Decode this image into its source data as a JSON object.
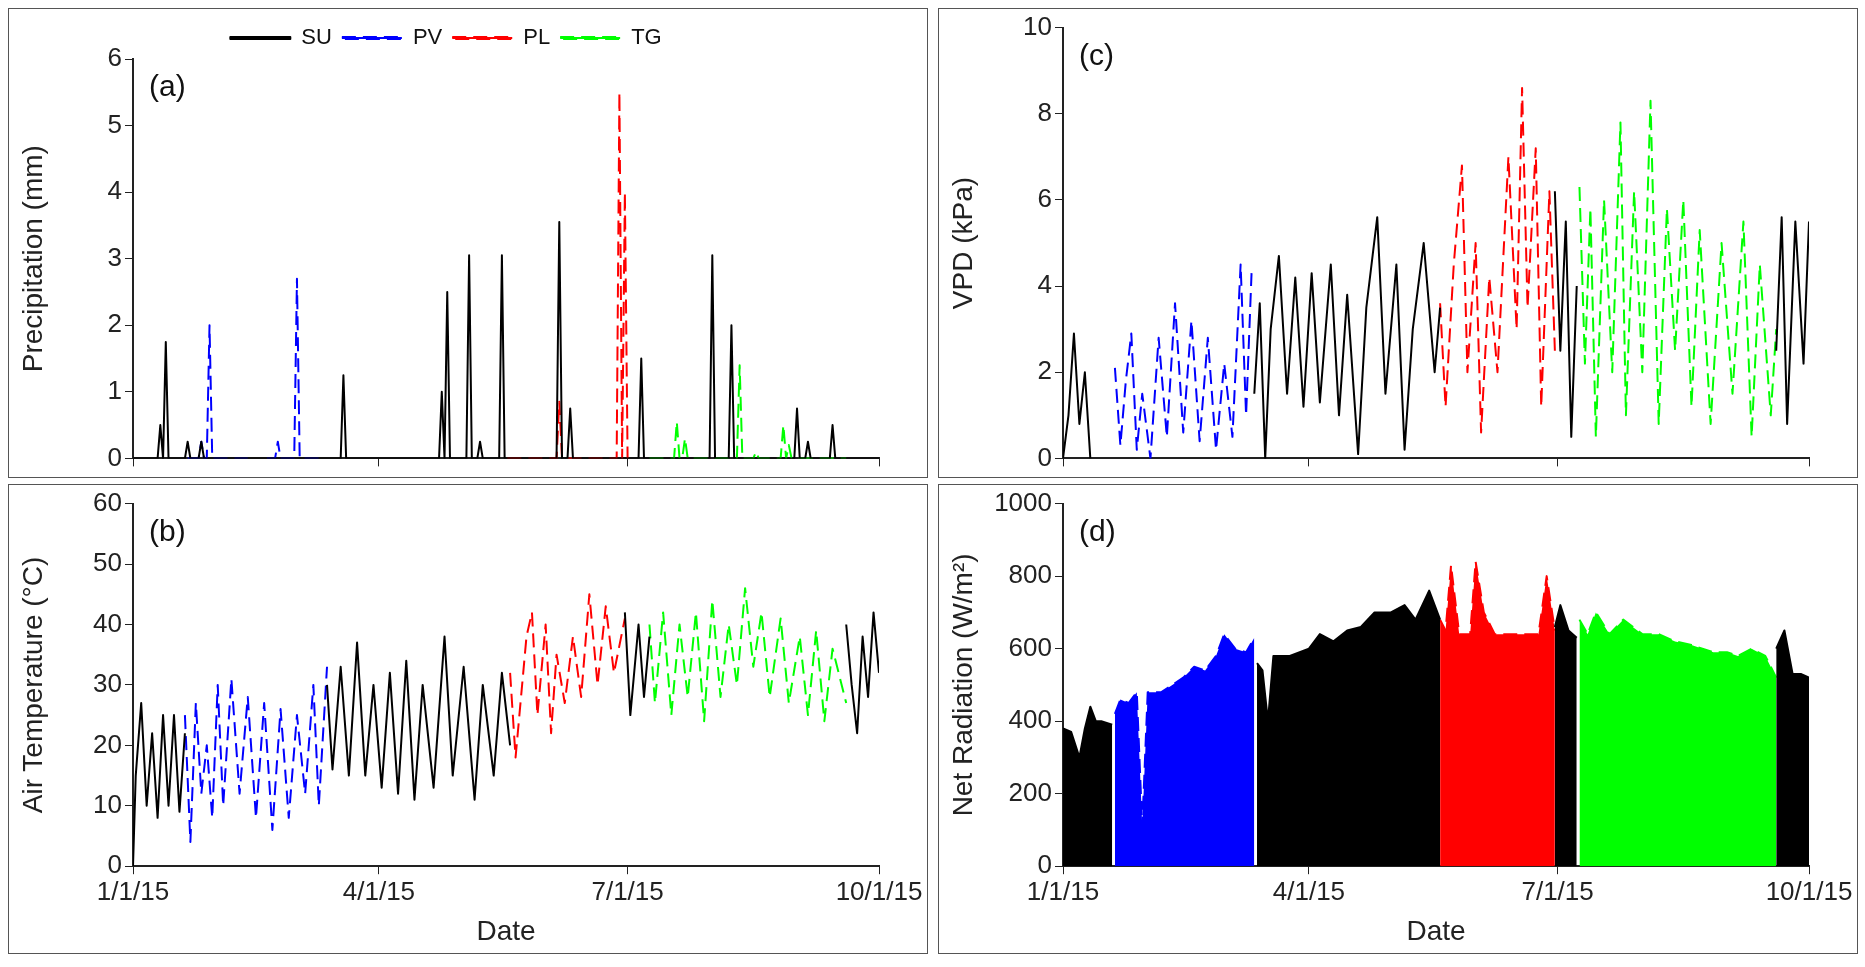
{
  "chart_data": [
    {
      "type": "line",
      "ylabel": "Precipitation (mm)",
      "annotations": [
        "(a)"
      ],
      "legend": "top",
      "tick_labels": "y",
      "grid": false,
      "xlim": [
        "2015-01-01",
        "2015-10-01"
      ],
      "xticks": [
        {
          "value": "2015-01-01",
          "label": null
        },
        {
          "value": "2015-04-01",
          "label": null
        },
        {
          "value": "2015-07-01",
          "label": null
        },
        {
          "value": "2015-10-01",
          "label": null
        }
      ],
      "ylim": [
        0,
        6
      ],
      "yticks": [
        0,
        1,
        2,
        3,
        4,
        5,
        6
      ],
      "series": [
        {
          "name": "SU",
          "color": "#000000",
          "line_style": "solid",
          "x": [
            "2015-01-01",
            "2015-01-10",
            "2015-01-11",
            "2015-01-12",
            "2015-01-13",
            "2015-01-14",
            "2015-01-20",
            "2015-01-21",
            "2015-01-22",
            "2015-01-25",
            "2015-01-26",
            "2015-01-27",
            "2015-03-18",
            "2015-03-19",
            "2015-03-20",
            "2015-04-23",
            "2015-04-24",
            "2015-04-25",
            "2015-04-26",
            "2015-04-27",
            "2015-05-03",
            "2015-05-04",
            "2015-05-05",
            "2015-05-07",
            "2015-05-08",
            "2015-05-09",
            "2015-05-15",
            "2015-05-16",
            "2015-05-17",
            "2015-06-05",
            "2015-06-06",
            "2015-06-07",
            "2015-06-09",
            "2015-06-10",
            "2015-06-11",
            "2015-07-05",
            "2015-07-06",
            "2015-07-07",
            "2015-07-31",
            "2015-08-01",
            "2015-08-02",
            "2015-08-07",
            "2015-08-08",
            "2015-08-09",
            "2015-08-31",
            "2015-09-01",
            "2015-09-02",
            "2015-09-04",
            "2015-09-05",
            "2015-09-06",
            "2015-09-13",
            "2015-09-14",
            "2015-09-15",
            "2015-10-01"
          ],
          "values": [
            0,
            0,
            0.5,
            0,
            1.75,
            0,
            0,
            0.25,
            0,
            0,
            0.25,
            0,
            0,
            1.25,
            0,
            0,
            1.0,
            0,
            2.5,
            0,
            0,
            3.05,
            0,
            0,
            0.25,
            0,
            0,
            3.05,
            0,
            0,
            3.55,
            0,
            0,
            0.75,
            0,
            0,
            1.5,
            0,
            0,
            3.05,
            0,
            0,
            2.0,
            0,
            0,
            0.75,
            0,
            0,
            0.25,
            0,
            0,
            0.5,
            0,
            0
          ]
        },
        {
          "name": "PV",
          "color": "#0000ff",
          "line_style": "dashed",
          "x": [
            "2015-01-21",
            "2015-01-25",
            "2015-01-26",
            "2015-01-27",
            "2015-01-28",
            "2015-01-29",
            "2015-01-30",
            "2015-02-12",
            "2015-02-15",
            "2015-02-19",
            "2015-02-22",
            "2015-02-23",
            "2015-02-24",
            "2015-03-01",
            "2015-03-02",
            "2015-03-03",
            "2015-03-10"
          ],
          "values": [
            0,
            0,
            0.25,
            0,
            0,
            2.0,
            0,
            0,
            null,
            0,
            0,
            0.25,
            0,
            0,
            2.7,
            0,
            0
          ]
        },
        {
          "name": "PL",
          "color": "#ff0000",
          "line_style": "dashed",
          "x": [
            "2015-05-18",
            "2015-06-05",
            "2015-06-06",
            "2015-06-07",
            "2015-06-27",
            "2015-06-28",
            "2015-06-29",
            "2015-06-30",
            "2015-07-01"
          ],
          "values": [
            0,
            0,
            0.85,
            0,
            0,
            5.5,
            0,
            4.0,
            0
          ]
        },
        {
          "name": "TG",
          "color": "#00ff00",
          "line_style": "dashed",
          "x": [
            "2015-07-09",
            "2015-07-18",
            "2015-07-19",
            "2015-07-20",
            "2015-07-21",
            "2015-07-22",
            "2015-07-23",
            "2015-08-10",
            "2015-08-11",
            "2015-08-12",
            "2015-08-16",
            "2015-08-17",
            "2015-08-18",
            "2015-08-26",
            "2015-08-27",
            "2015-08-28",
            "2015-08-29",
            "2015-08-30",
            "2015-09-19"
          ],
          "values": [
            0,
            0,
            0.55,
            0,
            0,
            0.3,
            0,
            0,
            1.4,
            0,
            0,
            0.1,
            0,
            0,
            0.5,
            0,
            0.2,
            0,
            0
          ]
        }
      ]
    },
    {
      "type": "line",
      "ylabel": "VPD (kPa)",
      "annotations": [
        "(c)"
      ],
      "tick_labels": "y",
      "grid": false,
      "xlim": [
        "2015-01-01",
        "2015-10-01"
      ],
      "xticks": [
        {
          "value": "2015-01-01",
          "label": null
        },
        {
          "value": "2015-04-01",
          "label": null
        },
        {
          "value": "2015-07-01",
          "label": null
        },
        {
          "value": "2015-10-01",
          "label": null
        }
      ],
      "ylim": [
        0,
        10
      ],
      "yticks": [
        0,
        2,
        4,
        6,
        8,
        10
      ],
      "series": [
        {
          "color": "#000000",
          "line_style": "solid",
          "x": [
            "2015-01-01",
            "2015-01-03",
            "2015-01-05",
            "2015-01-07",
            "2015-01-09",
            "2015-01-11",
            "2015-01-15",
            "2015-03-12",
            "2015-03-14",
            "2015-03-16",
            "2015-03-18",
            "2015-03-21",
            "2015-03-24",
            "2015-03-27",
            "2015-03-30",
            "2015-04-02",
            "2015-04-05",
            "2015-04-09",
            "2015-04-12",
            "2015-04-15",
            "2015-04-19",
            "2015-04-22",
            "2015-04-26",
            "2015-04-29",
            "2015-05-03",
            "2015-05-06",
            "2015-05-09",
            "2015-05-13",
            "2015-05-17",
            "2015-05-19",
            "2015-06-10",
            "2015-06-30",
            "2015-07-02",
            "2015-07-04",
            "2015-07-06",
            "2015-07-08",
            "2015-08-15",
            "2015-09-19",
            "2015-09-21",
            "2015-09-23",
            "2015-09-26",
            "2015-09-29",
            "2015-10-01"
          ],
          "values": [
            0,
            1,
            2.9,
            0.8,
            2,
            0,
            null,
            1.5,
            3.6,
            0,
            3,
            4.7,
            1.5,
            4.2,
            1.2,
            4.3,
            1.3,
            4.5,
            1,
            3.8,
            0.1,
            3.5,
            5.6,
            1.5,
            4.5,
            0.2,
            3,
            5,
            2,
            3.5,
            null,
            6.2,
            2.5,
            5.5,
            0.5,
            4,
            null,
            2.5,
            5.6,
            0.8,
            5.5,
            2.2,
            5.5
          ]
        },
        {
          "color": "#0000ff",
          "line_style": "dashed",
          "x": [
            "2015-01-20",
            "2015-01-22",
            "2015-01-24",
            "2015-01-26",
            "2015-01-28",
            "2015-01-30",
            "2015-02-02",
            "2015-02-05",
            "2015-02-08",
            "2015-02-11",
            "2015-02-14",
            "2015-02-17",
            "2015-02-20",
            "2015-02-23",
            "2015-02-26",
            "2015-03-01",
            "2015-03-04",
            "2015-03-07",
            "2015-03-09",
            "2015-03-11"
          ],
          "values": [
            2.1,
            0.3,
            1.8,
            2.9,
            0.2,
            1.5,
            0,
            2.8,
            0.5,
            3.6,
            0.6,
            3.2,
            0.4,
            2.8,
            0.2,
            2.2,
            0.5,
            4.5,
            1,
            4.3
          ]
        },
        {
          "color": "#ff0000",
          "line_style": "dashed",
          "x": [
            "2015-05-19",
            "2015-05-21",
            "2015-05-24",
            "2015-05-27",
            "2015-05-29",
            "2015-06-01",
            "2015-06-03",
            "2015-06-06",
            "2015-06-09",
            "2015-06-13",
            "2015-06-16",
            "2015-06-18",
            "2015-06-20",
            "2015-06-23",
            "2015-06-25",
            "2015-06-28",
            "2015-06-30"
          ],
          "values": [
            3.6,
            1.2,
            4.5,
            6.8,
            2,
            5,
            0.6,
            4.2,
            2,
            7,
            3,
            8.6,
            3.5,
            7.2,
            1.2,
            6.2,
            2.5
          ]
        },
        {
          "color": "#00ff00",
          "line_style": "dashed",
          "x": [
            "2015-07-09",
            "2015-07-11",
            "2015-07-13",
            "2015-07-15",
            "2015-07-18",
            "2015-07-21",
            "2015-07-24",
            "2015-07-26",
            "2015-07-29",
            "2015-08-01",
            "2015-08-04",
            "2015-08-07",
            "2015-08-10",
            "2015-08-13",
            "2015-08-16",
            "2015-08-19",
            "2015-08-22",
            "2015-08-26",
            "2015-08-30",
            "2015-09-03",
            "2015-09-07",
            "2015-09-10",
            "2015-09-13",
            "2015-09-17",
            "2015-09-19"
          ],
          "values": [
            6.3,
            2.2,
            5.8,
            0.5,
            6,
            2,
            7.8,
            1,
            6.2,
            2,
            8.3,
            0.8,
            5.8,
            2.5,
            6,
            1.2,
            5.3,
            0.8,
            5,
            1.5,
            5.5,
            0.5,
            4.5,
            1,
            3
          ]
        }
      ]
    },
    {
      "type": "line",
      "ylabel": "Air Temperature (°C)",
      "xlabel": "Date",
      "annotations": [
        "(b)"
      ],
      "grid": false,
      "xlim": [
        "2015-01-01",
        "2015-10-01"
      ],
      "xticks": [
        {
          "value": "2015-01-01",
          "label": "1/1/15"
        },
        {
          "value": "2015-04-01",
          "label": "4/1/15"
        },
        {
          "value": "2015-07-01",
          "label": "7/1/15"
        },
        {
          "value": "2015-10-01",
          "label": "10/1/15"
        }
      ],
      "ylim": [
        0,
        60
      ],
      "yticks": [
        0,
        10,
        20,
        30,
        40,
        50,
        60
      ],
      "series": [
        {
          "color": "#000000",
          "line_style": "solid",
          "x": [
            "2015-01-01",
            "2015-01-02",
            "2015-01-04",
            "2015-01-06",
            "2015-01-08",
            "2015-01-10",
            "2015-01-12",
            "2015-01-14",
            "2015-01-16",
            "2015-01-18",
            "2015-01-20",
            "2015-02-15",
            "2015-03-13",
            "2015-03-15",
            "2015-03-18",
            "2015-03-21",
            "2015-03-24",
            "2015-03-27",
            "2015-03-30",
            "2015-04-02",
            "2015-04-05",
            "2015-04-08",
            "2015-04-11",
            "2015-04-14",
            "2015-04-17",
            "2015-04-21",
            "2015-04-25",
            "2015-04-28",
            "2015-05-02",
            "2015-05-06",
            "2015-05-09",
            "2015-05-13",
            "2015-05-16",
            "2015-05-19",
            "2015-06-10",
            "2015-06-30",
            "2015-07-02",
            "2015-07-05",
            "2015-07-07",
            "2015-07-09",
            "2015-08-15",
            "2015-09-19",
            "2015-09-21",
            "2015-09-23",
            "2015-09-25",
            "2015-09-27",
            "2015-09-29",
            "2015-10-01"
          ],
          "values": [
            0,
            15,
            27,
            10,
            22,
            8,
            25,
            10,
            25,
            9,
            22,
            null,
            30,
            16,
            33,
            15,
            37,
            15,
            30,
            13,
            32,
            12,
            34,
            11,
            30,
            13,
            38,
            15,
            33,
            11,
            30,
            15,
            32,
            20,
            null,
            42,
            25,
            40,
            28,
            38,
            null,
            40,
            30,
            22,
            38,
            28,
            42,
            32
          ]
        },
        {
          "color": "#0000ff",
          "line_style": "dashed",
          "x": [
            "2015-01-20",
            "2015-01-22",
            "2015-01-24",
            "2015-01-26",
            "2015-01-28",
            "2015-01-30",
            "2015-02-01",
            "2015-02-03",
            "2015-02-06",
            "2015-02-09",
            "2015-02-12",
            "2015-02-15",
            "2015-02-18",
            "2015-02-21",
            "2015-02-24",
            "2015-02-27",
            "2015-03-02",
            "2015-03-05",
            "2015-03-08",
            "2015-03-10",
            "2015-03-13"
          ],
          "values": [
            25,
            4,
            27,
            12,
            20,
            8,
            30,
            10,
            31,
            12,
            28,
            8,
            27,
            6,
            26,
            8,
            25,
            12,
            30,
            10,
            33
          ]
        },
        {
          "color": "#ff0000",
          "line_style": "dashed",
          "x": [
            "2015-05-19",
            "2015-05-21",
            "2015-05-23",
            "2015-05-25",
            "2015-05-27",
            "2015-05-29",
            "2015-06-01",
            "2015-06-03",
            "2015-06-05",
            "2015-06-08",
            "2015-06-11",
            "2015-06-14",
            "2015-06-17",
            "2015-06-20",
            "2015-06-23",
            "2015-06-26",
            "2015-06-30"
          ],
          "values": [
            32,
            18,
            28,
            38,
            42,
            25,
            40,
            22,
            35,
            27,
            38,
            28,
            45,
            30,
            43,
            32,
            41
          ]
        },
        {
          "color": "#00ff00",
          "line_style": "dashed",
          "x": [
            "2015-07-09",
            "2015-07-11",
            "2015-07-14",
            "2015-07-17",
            "2015-07-20",
            "2015-07-23",
            "2015-07-26",
            "2015-07-29",
            "2015-08-01",
            "2015-08-04",
            "2015-08-07",
            "2015-08-10",
            "2015-08-13",
            "2015-08-16",
            "2015-08-19",
            "2015-08-22",
            "2015-08-26",
            "2015-08-29",
            "2015-09-02",
            "2015-09-05",
            "2015-09-08",
            "2015-09-11",
            "2015-09-14",
            "2015-09-19"
          ],
          "values": [
            40,
            27,
            42,
            25,
            40,
            28,
            42,
            24,
            44,
            28,
            40,
            30,
            46,
            33,
            42,
            28,
            41,
            27,
            38,
            25,
            39,
            24,
            36,
            27
          ]
        }
      ]
    },
    {
      "type": "area",
      "ylabel": "Net Radiation (W/m²)",
      "xlabel": "Date",
      "annotations": [
        "(d)"
      ],
      "grid": false,
      "xlim": [
        "2015-01-01",
        "2015-10-01"
      ],
      "xticks": [
        {
          "value": "2015-01-01",
          "label": "1/1/15"
        },
        {
          "value": "2015-04-01",
          "label": "4/1/15"
        },
        {
          "value": "2015-07-01",
          "label": "7/1/15"
        },
        {
          "value": "2015-10-01",
          "label": "10/1/15"
        }
      ],
      "ylim": [
        0,
        1000
      ],
      "yticks": [
        0,
        200,
        400,
        600,
        800,
        1000
      ],
      "series": [
        {
          "color": "#000000",
          "line_style": "solid",
          "x": [
            "2015-01-01",
            "2015-01-04",
            "2015-01-07",
            "2015-01-09",
            "2015-01-11",
            "2015-01-13",
            "2015-01-15",
            "2015-01-19",
            "2015-02-15",
            "2015-03-13",
            "2015-03-15",
            "2015-03-17",
            "2015-03-19",
            "2015-03-25",
            "2015-04-01",
            "2015-04-05",
            "2015-04-10",
            "2015-04-15",
            "2015-04-20",
            "2015-04-25",
            "2015-05-01",
            "2015-05-06",
            "2015-05-10",
            "2015-05-15",
            "2015-05-19",
            "2015-06-10",
            "2015-06-30",
            "2015-07-02",
            "2015-07-05",
            "2015-07-08",
            "2015-08-15",
            "2015-09-19",
            "2015-09-22",
            "2015-09-25",
            "2015-09-28",
            "2015-10-01"
          ],
          "values": [
            380,
            370,
            300,
            380,
            440,
            400,
            400,
            390,
            null,
            560,
            540,
            400,
            580,
            580,
            600,
            640,
            620,
            650,
            660,
            700,
            700,
            720,
            680,
            760,
            680,
            null,
            660,
            720,
            650,
            630,
            null,
            600,
            650,
            530,
            530,
            520
          ]
        },
        {
          "color": "#0000ff",
          "line_style": "dashed",
          "x": [
            "2015-01-20",
            "2015-01-22",
            "2015-01-25",
            "2015-01-28",
            "2015-01-30",
            "2015-02-01",
            "2015-02-06",
            "2015-02-10",
            "2015-02-14",
            "2015-02-18",
            "2015-02-22",
            "2015-02-26",
            "2015-03-01",
            "2015-03-05",
            "2015-03-09",
            "2015-03-12"
          ],
          "values": [
            420,
            460,
            450,
            480,
            110,
            480,
            480,
            500,
            520,
            550,
            540,
            580,
            640,
            600,
            590,
            630
          ]
        },
        {
          "color": "#ff0000",
          "line_style": "dashed",
          "x": [
            "2015-05-19",
            "2015-05-21",
            "2015-05-23",
            "2015-05-26",
            "2015-05-30",
            "2015-06-01",
            "2015-06-04",
            "2015-06-08",
            "2015-06-12",
            "2015-06-18",
            "2015-06-24",
            "2015-06-27",
            "2015-06-30"
          ],
          "values": [
            680,
            650,
            830,
            640,
            640,
            840,
            700,
            640,
            640,
            640,
            640,
            800,
            650
          ]
        },
        {
          "color": "#00ff00",
          "line_style": "dashed",
          "x": [
            "2015-07-09",
            "2015-07-12",
            "2015-07-15",
            "2015-07-20",
            "2015-07-25",
            "2015-08-01",
            "2015-08-07",
            "2015-08-13",
            "2015-08-19",
            "2015-08-23",
            "2015-08-27",
            "2015-09-01",
            "2015-09-05",
            "2015-09-10",
            "2015-09-15",
            "2015-09-19"
          ],
          "values": [
            680,
            640,
            700,
            640,
            680,
            640,
            640,
            620,
            610,
            600,
            590,
            590,
            580,
            600,
            580,
            520
          ]
        }
      ]
    }
  ]
}
